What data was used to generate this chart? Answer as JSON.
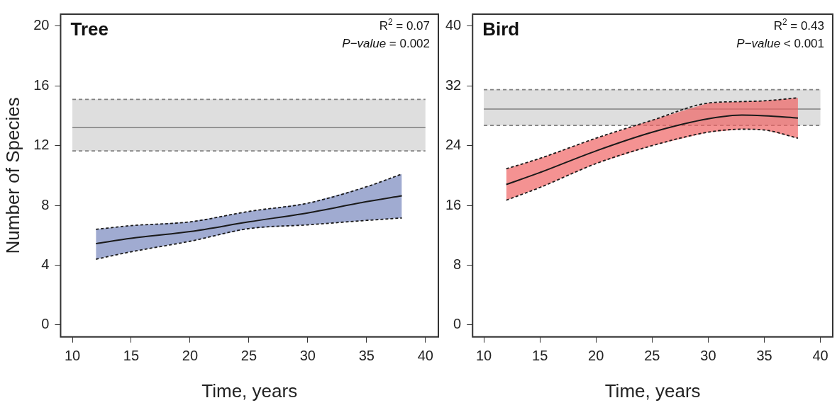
{
  "chart_data": [
    {
      "type": "line",
      "title": "Tree",
      "xlabel": "Time, years",
      "ylabel": "Number of Species",
      "annotations": [
        "R$^{2}$ = 0.07",
        "P−value = 0.002"
      ],
      "xlim": [
        9.0,
        41.1
      ],
      "ylim": [
        -0.8,
        20.8
      ],
      "xticks": [
        10,
        15,
        20,
        25,
        30,
        35,
        40
      ],
      "yticks": [
        0,
        4,
        8,
        12,
        16,
        20
      ],
      "grid": false,
      "legend": false,
      "marker": "none",
      "line_style": "solid",
      "bands": [
        {
          "axis": "y",
          "from": 11.65,
          "to": 15.1,
          "color": "#dedede"
        }
      ],
      "ref_lines": [
        {
          "axis": "y",
          "value": 13.2,
          "color": "#808080"
        },
        {
          "axis": "y",
          "value": 11.65,
          "color": "#808080",
          "line_style": "dashed"
        },
        {
          "axis": "y",
          "value": 15.1,
          "color": "#808080",
          "line_style": "dashed"
        }
      ],
      "series": [
        {
          "color": "#1a1a1a",
          "x": [
            12,
            15,
            20,
            25,
            30,
            35,
            38
          ],
          "values": [
            5.44,
            5.8,
            6.25,
            6.9,
            7.5,
            8.25,
            8.64
          ],
          "lower": [
            4.4,
            4.9,
            5.6,
            6.45,
            6.7,
            7.0,
            7.16
          ],
          "upper": [
            6.4,
            6.65,
            6.9,
            7.6,
            8.15,
            9.25,
            10.1
          ]
        },
        {
          "type": "line",
          "line_style": "dashed",
          "color": "#1a1a1a",
          "x": [
            12,
            15,
            20,
            25,
            30,
            35,
            38
          ],
          "values": [
            6.4,
            6.65,
            6.9,
            7.6,
            8.15,
            9.25,
            10.1
          ]
        },
        {
          "type": "line",
          "line_style": "dashed",
          "color": "#1a1a1a",
          "x": [
            12,
            15,
            20,
            25,
            30,
            35,
            38
          ],
          "values": [
            4.4,
            4.9,
            5.6,
            6.45,
            6.7,
            7.0,
            7.16
          ]
        }
      ]
    },
    {
      "type": "line",
      "title": "Bird",
      "xlabel": "Time, years",
      "annotations": [
        "R$^{2}$ = 0.43",
        "P−value < 0.001"
      ],
      "xlim": [
        9.0,
        41.1
      ],
      "ylim": [
        -1.6,
        41.6
      ],
      "xticks": [
        10,
        15,
        20,
        25,
        30,
        35,
        40
      ],
      "yticks": [
        0,
        8,
        16,
        24,
        32,
        40
      ],
      "grid": false,
      "legend": false,
      "marker": "none",
      "line_style": "solid",
      "bands": [
        {
          "axis": "y",
          "from": 26.7,
          "to": 31.5,
          "color": "#dedede"
        }
      ],
      "ref_lines": [
        {
          "axis": "y",
          "value": 28.9,
          "color": "#808080"
        },
        {
          "axis": "y",
          "value": 26.7,
          "color": "#808080",
          "line_style": "dashed"
        },
        {
          "axis": "y",
          "value": 31.5,
          "color": "#808080",
          "line_style": "dashed"
        }
      ],
      "series": [
        {
          "color": "#1a1a1a",
          "x": [
            12,
            15,
            20,
            25,
            30,
            33,
            35,
            38
          ],
          "values": [
            18.8,
            20.4,
            23.3,
            25.8,
            27.6,
            28.1,
            28.0,
            27.7
          ],
          "lower": [
            16.7,
            18.4,
            21.6,
            24.0,
            25.8,
            26.2,
            26.1,
            25.0
          ],
          "upper": [
            20.9,
            22.3,
            25.0,
            27.4,
            29.7,
            29.9,
            30.0,
            30.4
          ]
        },
        {
          "type": "line",
          "line_style": "dashed",
          "color": "#1a1a1a",
          "x": [
            12,
            15,
            20,
            25,
            30,
            33,
            35,
            38
          ],
          "values": [
            20.9,
            22.3,
            25.0,
            27.4,
            29.7,
            29.9,
            30.0,
            30.4
          ]
        },
        {
          "type": "line",
          "line_style": "dashed",
          "color": "#1a1a1a",
          "x": [
            12,
            15,
            20,
            25,
            30,
            33,
            35,
            38
          ],
          "values": [
            16.7,
            18.4,
            21.6,
            24.0,
            25.8,
            26.2,
            26.1,
            25.0
          ]
        }
      ]
    }
  ]
}
